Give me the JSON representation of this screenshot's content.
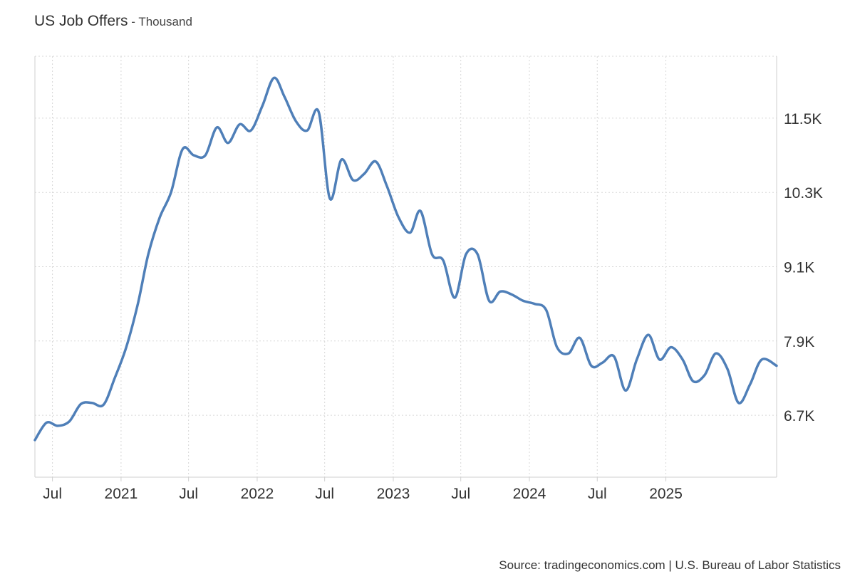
{
  "header": {
    "title": "US Job Offers",
    "separator": " - ",
    "unit": "Thousand"
  },
  "footer": {
    "source": "Source: tradingeconomics.com | U.S. Bureau of Labor Statistics"
  },
  "colors": {
    "line": "#4f7fb8",
    "grid": "#d7d7d7",
    "axis": "#cfcfcf"
  },
  "chart_data": {
    "type": "line",
    "title": "US Job Offers",
    "subtitle": "Thousand",
    "xlabel": "",
    "ylabel": "",
    "ylim": [
      5700,
      12500
    ],
    "xlim": [
      "2020-05-15",
      "2025-10-25"
    ],
    "y_axis_position": "right",
    "grid": true,
    "legend": "none",
    "y_ticks": [
      {
        "value": 6700,
        "label": "6.7K"
      },
      {
        "value": 7900,
        "label": "7.9K"
      },
      {
        "value": 9100,
        "label": "9.1K"
      },
      {
        "value": 10300,
        "label": "10.3K"
      },
      {
        "value": 11500,
        "label": "11.5K"
      }
    ],
    "x_ticks": [
      {
        "date": "2020-07-01",
        "label": "Jul"
      },
      {
        "date": "2021-01-01",
        "label": "2021"
      },
      {
        "date": "2021-07-01",
        "label": "Jul"
      },
      {
        "date": "2022-01-01",
        "label": "2022"
      },
      {
        "date": "2022-07-01",
        "label": "Jul"
      },
      {
        "date": "2023-01-01",
        "label": "2023"
      },
      {
        "date": "2023-07-01",
        "label": "Jul"
      },
      {
        "date": "2024-01-01",
        "label": "2024"
      },
      {
        "date": "2024-07-01",
        "label": "Jul"
      },
      {
        "date": "2025-01-01",
        "label": "2025"
      }
    ],
    "series": [
      {
        "x": [
          "2020-05-15",
          "2020-06-15",
          "2020-07-15",
          "2020-08-15",
          "2020-09-15",
          "2020-10-15",
          "2020-11-15",
          "2020-12-15",
          "2021-01-15",
          "2021-02-15",
          "2021-03-15",
          "2021-04-15",
          "2021-05-15",
          "2021-06-15",
          "2021-07-15",
          "2021-08-15",
          "2021-09-15",
          "2021-10-15",
          "2021-11-15",
          "2021-12-15",
          "2022-01-15",
          "2022-02-15",
          "2022-03-15",
          "2022-04-15",
          "2022-05-15",
          "2022-06-15",
          "2022-07-15",
          "2022-08-15",
          "2022-09-15",
          "2022-10-15",
          "2022-11-15",
          "2022-12-15",
          "2023-01-15",
          "2023-02-15",
          "2023-03-15",
          "2023-04-15",
          "2023-05-15",
          "2023-06-15",
          "2023-07-15",
          "2023-08-15",
          "2023-09-15",
          "2023-10-15",
          "2023-11-15",
          "2023-12-15",
          "2024-01-15",
          "2024-02-15",
          "2024-03-15",
          "2024-04-15",
          "2024-05-15",
          "2024-06-15",
          "2024-07-15",
          "2024-08-15",
          "2024-09-15",
          "2024-10-15",
          "2024-11-15",
          "2024-12-15",
          "2025-01-15",
          "2025-02-15",
          "2025-03-15",
          "2025-04-15",
          "2025-05-15",
          "2025-06-15",
          "2025-07-15",
          "2025-08-15",
          "2025-09-15",
          "2025-10-25"
        ],
        "y": [
          6300,
          6580,
          6530,
          6600,
          6880,
          6900,
          6870,
          7300,
          7800,
          8500,
          9300,
          9900,
          10300,
          11000,
          10900,
          10900,
          11350,
          11100,
          11400,
          11300,
          11700,
          12150,
          11850,
          11450,
          11300,
          11600,
          10200,
          10830,
          10500,
          10600,
          10800,
          10400,
          9900,
          9650,
          10000,
          9300,
          9200,
          8600,
          9300,
          9300,
          8550,
          8700,
          8650,
          8550,
          8500,
          8400,
          7800,
          7700,
          7950,
          7500,
          7550,
          7650,
          7100,
          7600,
          8000,
          7600,
          7800,
          7600,
          7250,
          7350,
          7700,
          7450,
          6900,
          7200,
          7600,
          7500
        ]
      }
    ]
  }
}
